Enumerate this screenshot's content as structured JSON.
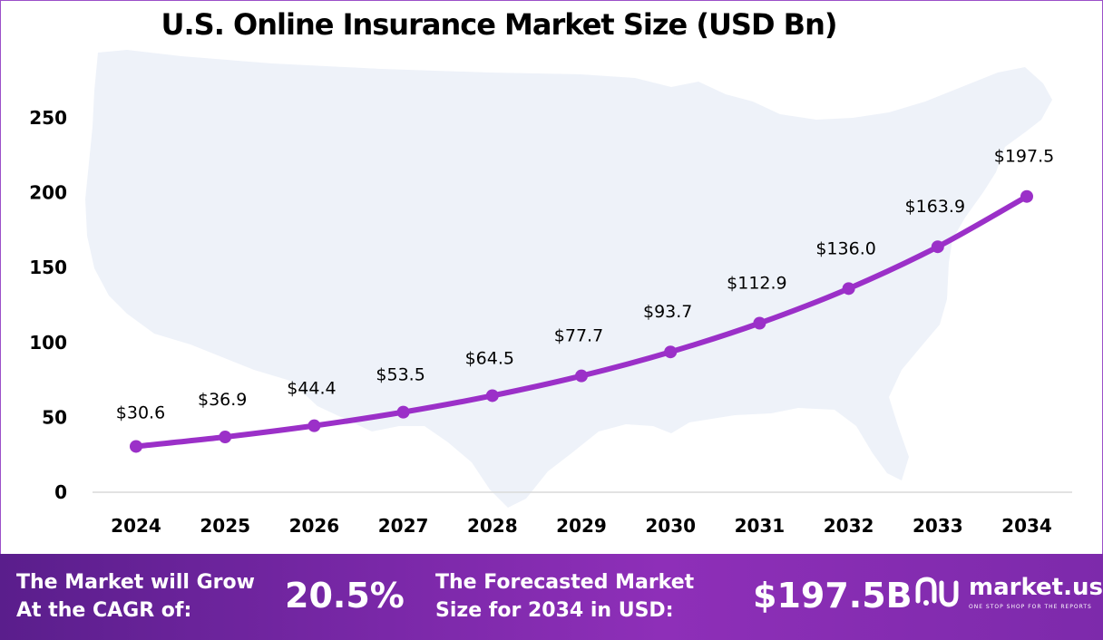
{
  "chart_data": {
    "type": "line",
    "title": "U.S. Online Insurance Market Size (USD Bn)",
    "categories": [
      "2024",
      "2025",
      "2026",
      "2027",
      "2028",
      "2029",
      "2030",
      "2031",
      "2032",
      "2033",
      "2034"
    ],
    "values": [
      30.6,
      36.9,
      44.4,
      53.5,
      64.5,
      77.7,
      93.7,
      112.9,
      136.0,
      163.9,
      197.5
    ],
    "data_labels": [
      "$30.6",
      "$36.9",
      "$44.4",
      "$53.5",
      "$64.5",
      "$77.7",
      "$93.7",
      "$112.9",
      "$136.0",
      "$163.9",
      "$197.5"
    ],
    "y_ticks": [
      "0",
      "50",
      "100",
      "150",
      "200",
      "250"
    ],
    "ylim": [
      0,
      250
    ],
    "line_color": "#9b30c8",
    "background_image": "usa-map-silhouette",
    "grid": false
  },
  "footer": {
    "cagr_label_line1": "The Market will Grow",
    "cagr_label_line2": "At the CAGR of:",
    "cagr_value": "20.5%",
    "forecast_label_line1": "The Forecasted Market",
    "forecast_label_line2": "Size for 2034 in USD:",
    "forecast_value": "$197.5B",
    "brand_name": "market.us",
    "brand_tagline": "ONE STOP SHOP FOR THE REPORTS"
  }
}
